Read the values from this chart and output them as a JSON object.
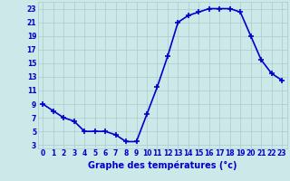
{
  "hours": [
    0,
    1,
    2,
    3,
    4,
    5,
    6,
    7,
    8,
    9,
    10,
    11,
    12,
    13,
    14,
    15,
    16,
    17,
    18,
    19,
    20,
    21,
    22,
    23
  ],
  "temperatures": [
    9,
    8,
    7,
    6.5,
    5,
    5,
    5,
    4.5,
    3.5,
    3.5,
    7.5,
    11.5,
    16,
    21,
    22,
    22.5,
    23,
    23,
    23,
    22.5,
    19,
    15.5,
    13.5,
    12.5
  ],
  "line_color": "#0000cc",
  "marker": "+",
  "marker_size": 4,
  "bg_color": "#cce8e8",
  "grid_color": "#aacccc",
  "xlabel": "Graphe des températures (°c)",
  "tick_color": "#0000cc",
  "xlim": [
    -0.5,
    23.5
  ],
  "ylim": [
    2.5,
    24
  ],
  "yticks": [
    3,
    5,
    7,
    9,
    11,
    13,
    15,
    17,
    19,
    21,
    23
  ],
  "xticks": [
    0,
    1,
    2,
    3,
    4,
    5,
    6,
    7,
    8,
    9,
    10,
    11,
    12,
    13,
    14,
    15,
    16,
    17,
    18,
    19,
    20,
    21,
    22,
    23
  ],
  "tick_fontsize": 5.5,
  "label_fontsize": 7,
  "linewidth": 1.2,
  "marker_linewidth": 1.2
}
